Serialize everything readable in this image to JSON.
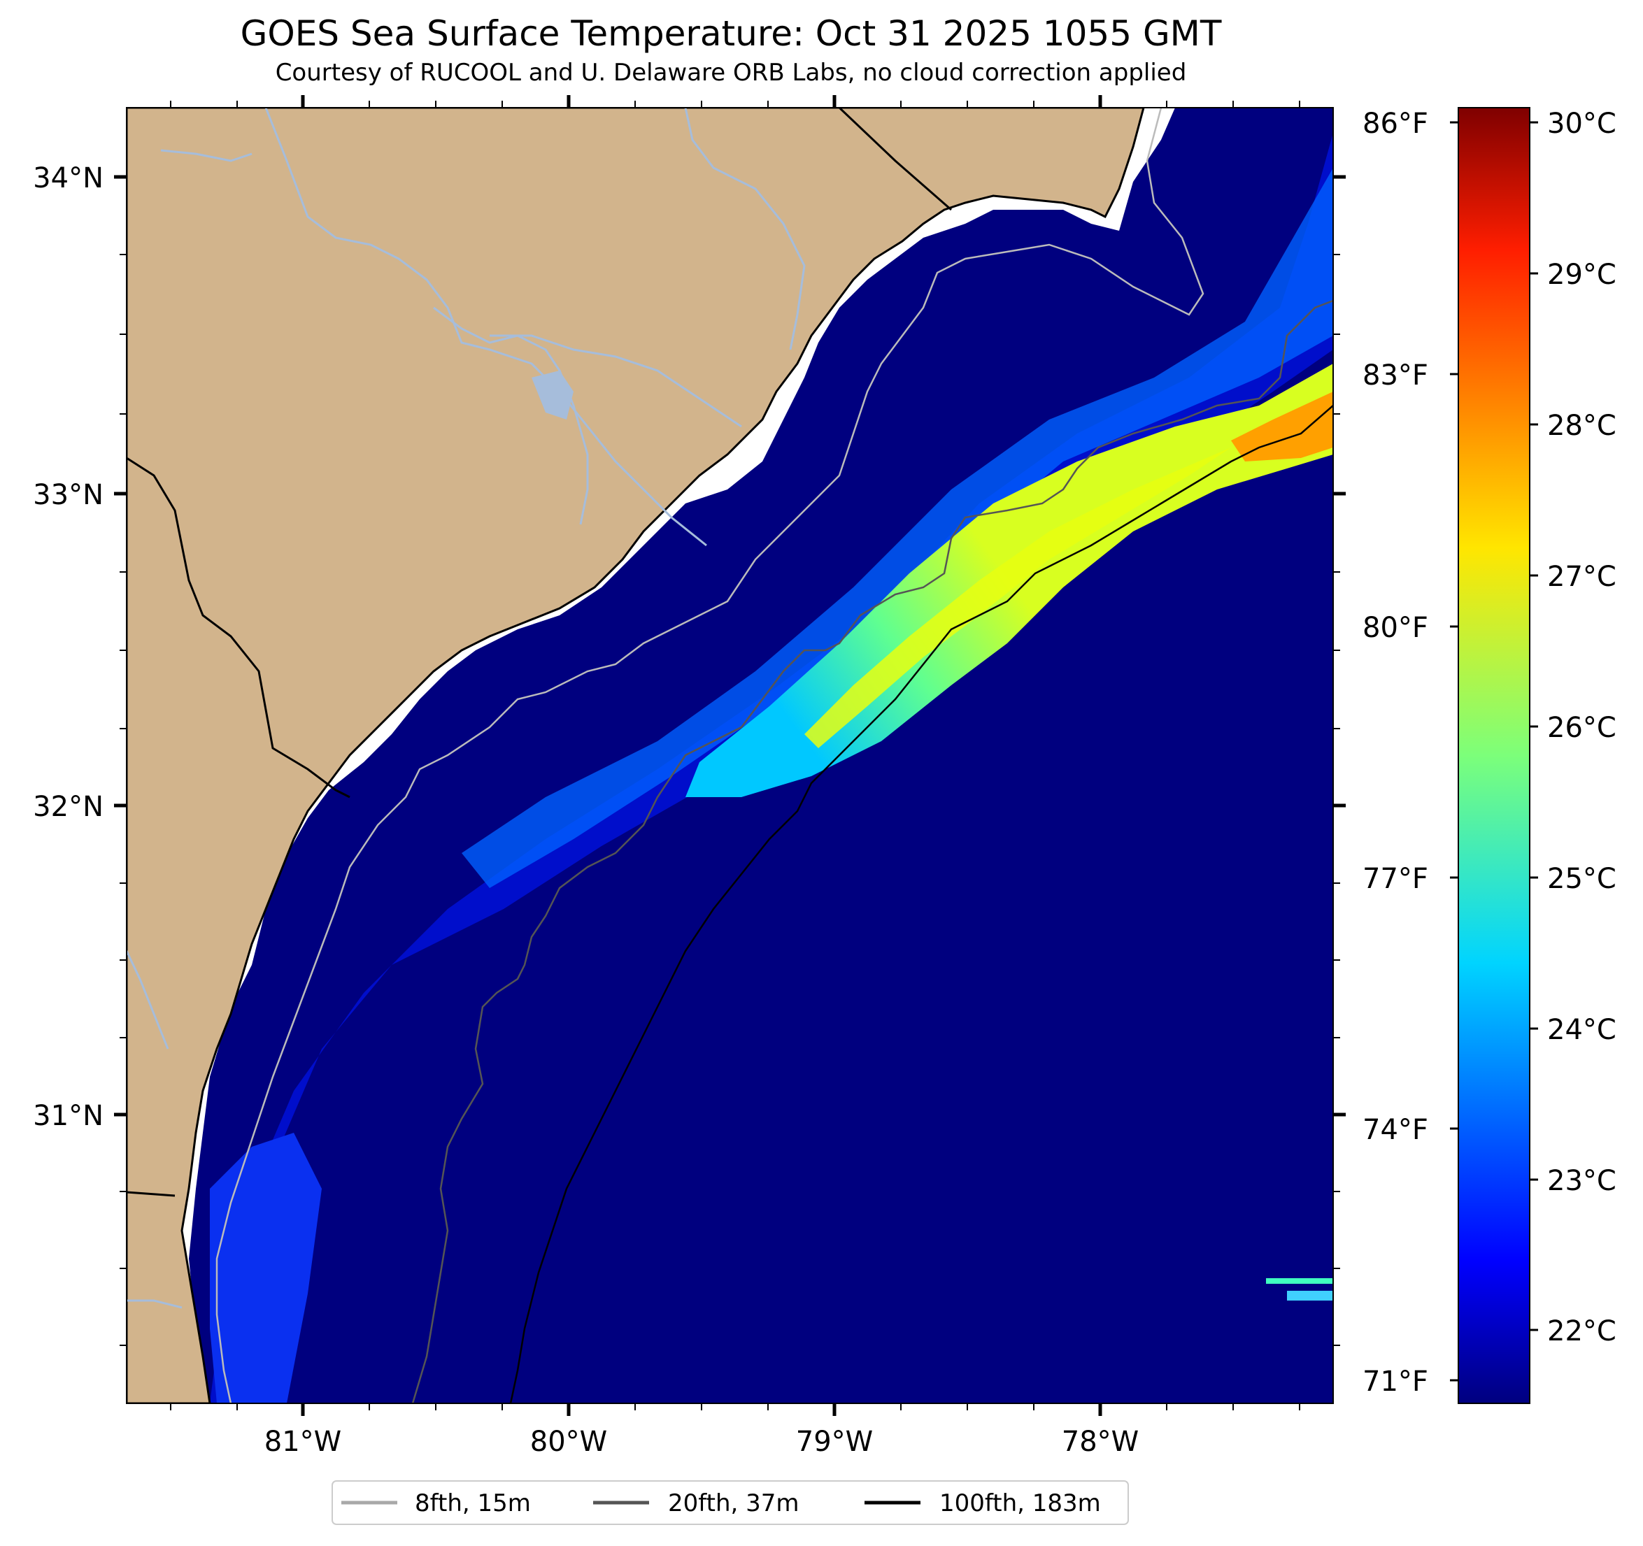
{
  "title": "GOES Sea Surface Temperature: Oct 31 2025 1055 GMT",
  "subtitle": "Courtesy of RUCOOL and U. Delaware ORB Labs, no cloud correction applied",
  "map": {
    "lon_labels": [
      "81°W",
      "80°W",
      "79°W",
      "78°W"
    ],
    "lat_labels": [
      "34°N",
      "33°N",
      "32°N",
      "31°N"
    ],
    "fahrenheit_labels": [
      "86°F",
      "83°F",
      "80°F",
      "77°F",
      "74°F",
      "71°F"
    ],
    "colors": {
      "land": "#d2b48c",
      "ocean_cold": "#00007f",
      "rivers": "#a6bddb",
      "coastline": "#000000"
    }
  },
  "colorbar": {
    "labels": [
      "30°C",
      "29°C",
      "28°C",
      "27°C",
      "26°C",
      "25°C",
      "24°C",
      "23°C",
      "22°C"
    ],
    "colormap": "jet"
  },
  "legend": {
    "items": [
      {
        "label": "8fth, 15m",
        "color": "#a9a9a9"
      },
      {
        "label": "20fth, 37m",
        "color": "#555555"
      },
      {
        "label": "100fth, 183m",
        "color": "#000000"
      }
    ]
  }
}
